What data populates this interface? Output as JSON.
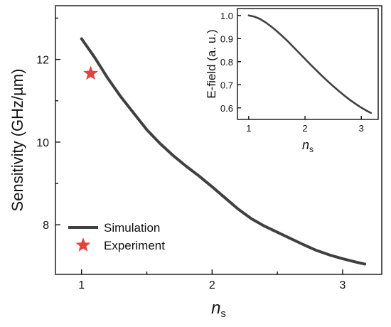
{
  "colors": {
    "simulation_line": "#404040",
    "experiment_marker": "#e8413d",
    "axis": "#111111"
  },
  "chart_data": [
    {
      "type": "line",
      "panel": "main",
      "xlabel": "n",
      "xlabel_sub": "s",
      "ylabel": "Sensitivity (GHz/µm)",
      "xlim": [
        0.8,
        3.3
      ],
      "ylim": [
        6.8,
        13.3
      ],
      "xticks": [
        1,
        2,
        3
      ],
      "yticks": [
        8,
        10,
        12
      ],
      "grid": false,
      "legend_position": "bottom-left",
      "series": [
        {
          "name": "Simulation",
          "style": "line",
          "x": [
            1.0,
            1.1,
            1.2,
            1.3,
            1.4,
            1.5,
            1.6,
            1.7,
            1.8,
            1.9,
            2.0,
            2.1,
            2.2,
            2.3,
            2.4,
            2.5,
            2.6,
            2.7,
            2.8,
            2.9,
            3.0,
            3.1,
            3.17
          ],
          "y": [
            12.5,
            12.05,
            11.55,
            11.1,
            10.7,
            10.3,
            9.97,
            9.68,
            9.42,
            9.18,
            8.92,
            8.65,
            8.38,
            8.15,
            7.97,
            7.82,
            7.67,
            7.52,
            7.38,
            7.27,
            7.18,
            7.1,
            7.05
          ]
        },
        {
          "name": "Experiment",
          "style": "marker-star",
          "x": [
            1.07
          ],
          "y": [
            11.66
          ]
        }
      ]
    },
    {
      "type": "line",
      "panel": "inset",
      "xlabel": "n",
      "xlabel_sub": "s",
      "ylabel": "E-field (a. u.)",
      "xlim": [
        0.8,
        3.3
      ],
      "ylim": [
        0.55,
        1.03
      ],
      "xticks": [
        1,
        2,
        3
      ],
      "yticks": [
        0.6,
        0.7,
        0.8,
        0.9,
        1.0
      ],
      "ytick_labels": [
        "0.6",
        "0.7",
        "0.8",
        "0.9",
        "1.0"
      ],
      "grid": false,
      "series": [
        {
          "x": [
            1.0,
            1.1,
            1.2,
            1.3,
            1.4,
            1.5,
            1.6,
            1.7,
            1.8,
            1.9,
            2.0,
            2.1,
            2.2,
            2.3,
            2.4,
            2.5,
            2.6,
            2.7,
            2.8,
            2.9,
            3.0,
            3.1,
            3.17
          ],
          "y": [
            1.0,
            0.995,
            0.985,
            0.97,
            0.952,
            0.932,
            0.91,
            0.887,
            0.862,
            0.837,
            0.812,
            0.787,
            0.763,
            0.739,
            0.716,
            0.694,
            0.673,
            0.653,
            0.634,
            0.617,
            0.601,
            0.587,
            0.578
          ]
        }
      ]
    }
  ]
}
